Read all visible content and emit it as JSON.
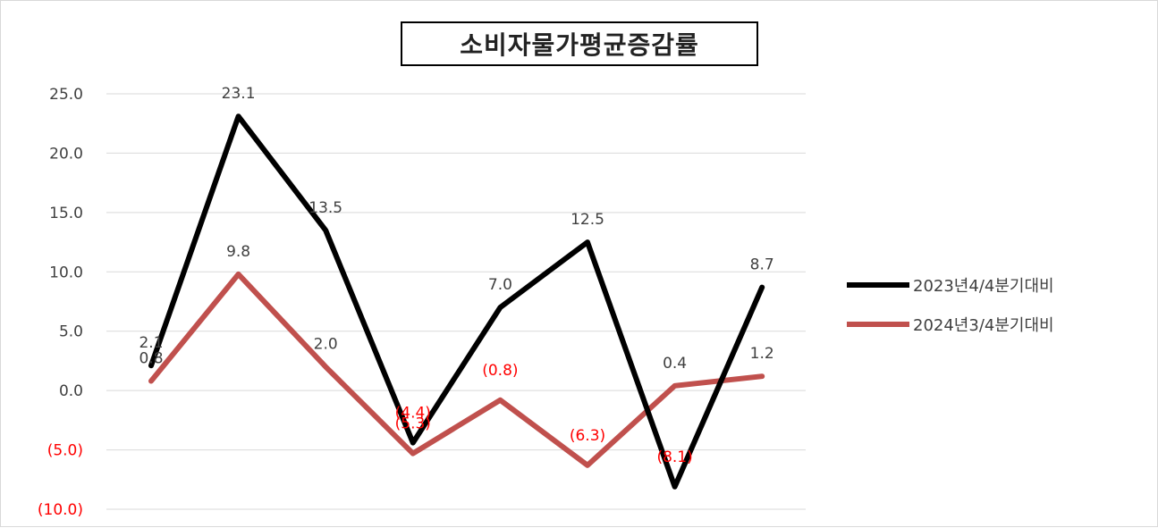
{
  "colors": {
    "series_2023": "#000000",
    "series_2024": "#c0504d",
    "negative_label": "#ff0000",
    "label_default": "#404040",
    "grid": "#d9d9d9"
  },
  "chart_data": {
    "type": "line",
    "title": "소비자물가평균증감률",
    "xlabel": "",
    "ylabel": "",
    "ylim": [
      -10,
      25
    ],
    "yticks": [
      25,
      20,
      15,
      10,
      5,
      0,
      -5,
      -10
    ],
    "ytick_labels": [
      "25.0",
      "20.0",
      "15.0",
      "10.0",
      "5.0",
      "0.0",
      "(5.0)",
      "(10.0)"
    ],
    "categories": [
      "",
      "",
      "",
      "",
      "",
      "",
      "",
      ""
    ],
    "grid": true,
    "legend_position": "right",
    "series": [
      {
        "name": "2023년4/4분기대비",
        "values": [
          2.1,
          23.1,
          13.5,
          -4.4,
          7.0,
          12.5,
          -8.1,
          8.7
        ],
        "labels": [
          "2.1",
          "23.1",
          "13.5",
          "(4.4)",
          "7.0",
          "12.5",
          "(8.1)",
          "8.7"
        ]
      },
      {
        "name": "2024년3/4분기대비",
        "values": [
          0.8,
          9.8,
          2.0,
          -5.3,
          -0.8,
          -6.3,
          0.4,
          1.2
        ],
        "labels": [
          "0.8",
          "9.8",
          "2.0",
          "(5.3)",
          "(0.8)",
          "(6.3)",
          "0.4",
          "1.2"
        ]
      }
    ]
  }
}
